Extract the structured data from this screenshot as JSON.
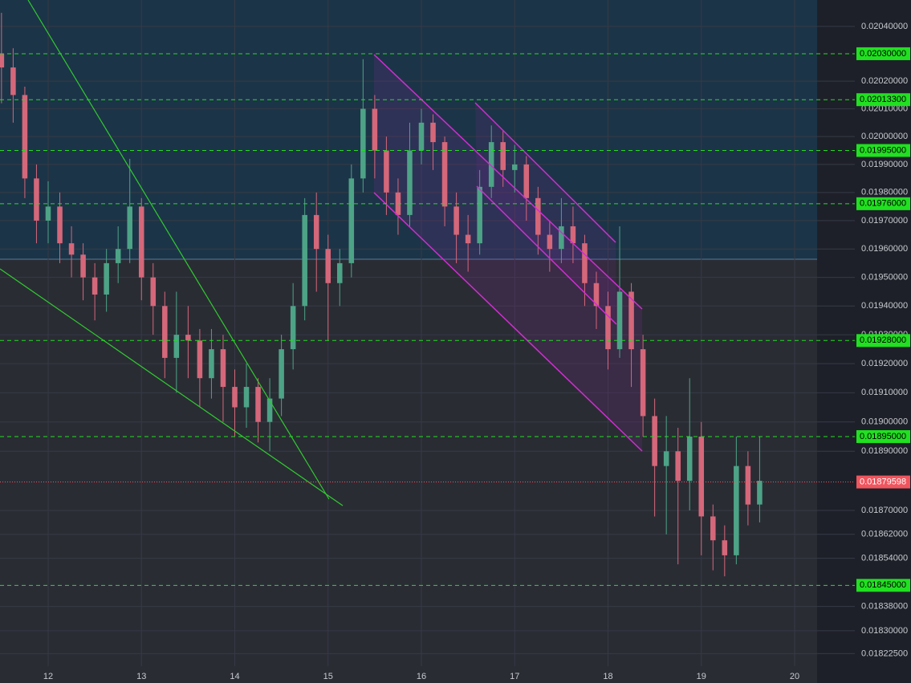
{
  "chart_data": {
    "type": "candlestick",
    "log_scale": true,
    "grid": true,
    "up_color": "#4da386",
    "down_color": "#d5677a",
    "xlim": [
      11.484,
      20.645
    ],
    "xticks": [
      12,
      13,
      14,
      15,
      16,
      17,
      18,
      19,
      20
    ],
    "ylim": [
      0.018184,
      0.020497
    ],
    "yticks": [
      {
        "value": 0.0204,
        "label": "0.02040000"
      },
      {
        "value": 0.0202,
        "label": "0.02020000"
      },
      {
        "value": 0.0201,
        "label": "0.02010000"
      },
      {
        "value": 0.02,
        "label": "0.02000000"
      },
      {
        "value": 0.0199,
        "label": "0.01990000"
      },
      {
        "value": 0.0198,
        "label": "0.01980000"
      },
      {
        "value": 0.0197,
        "label": "0.01970000"
      },
      {
        "value": 0.0196,
        "label": "0.01960000"
      },
      {
        "value": 0.0195,
        "label": "0.01950000"
      },
      {
        "value": 0.0194,
        "label": "0.01940000"
      },
      {
        "value": 0.0193,
        "label": "0.01930000"
      },
      {
        "value": 0.0192,
        "label": "0.01920000"
      },
      {
        "value": 0.0191,
        "label": "0.01910000"
      },
      {
        "value": 0.019,
        "label": "0.01900000"
      },
      {
        "value": 0.0189,
        "label": "0.01890000"
      },
      {
        "value": 0.0187,
        "label": "0.01870000"
      },
      {
        "value": 0.01862,
        "label": "0.01862000"
      },
      {
        "value": 0.01854,
        "label": "0.01854000"
      },
      {
        "value": 0.01838,
        "label": "0.01838000"
      },
      {
        "value": 0.0183,
        "label": "0.01830000"
      },
      {
        "value": 0.018225,
        "label": "0.01822500"
      }
    ],
    "x": [
      11.5,
      11.625,
      11.75,
      11.875,
      12,
      12.125,
      12.25,
      12.375,
      12.5,
      12.625,
      12.75,
      12.875,
      13,
      13.125,
      13.25,
      13.375,
      13.5,
      13.625,
      13.75,
      13.875,
      14,
      14.125,
      14.25,
      14.375,
      14.5,
      14.625,
      14.75,
      14.875,
      15,
      15.125,
      15.25,
      15.375,
      15.5,
      15.625,
      15.75,
      15.875,
      16,
      16.125,
      16.25,
      16.375,
      16.5,
      16.625,
      16.75,
      16.875,
      17,
      17.125,
      17.25,
      17.375,
      17.5,
      17.625,
      17.75,
      17.875,
      18,
      18.125,
      18.25,
      18.375,
      18.5,
      18.625,
      18.75,
      18.875,
      19,
      19.125,
      19.25,
      19.375,
      19.5,
      19.625
    ],
    "open": [
      0.0203,
      0.02025,
      0.02015,
      0.01985,
      0.0197,
      0.01975,
      0.01962,
      0.01958,
      0.0195,
      0.01944,
      0.01955,
      0.0196,
      0.01975,
      0.0195,
      0.0194,
      0.01922,
      0.0193,
      0.01928,
      0.01915,
      0.01925,
      0.01912,
      0.01905,
      0.01912,
      0.019,
      0.01908,
      0.01925,
      0.0194,
      0.01972,
      0.0196,
      0.01948,
      0.01955,
      0.01985,
      0.0201,
      0.01995,
      0.0198,
      0.01972,
      0.01995,
      0.02005,
      0.01998,
      0.01975,
      0.01965,
      0.01962,
      0.01982,
      0.01998,
      0.01988,
      0.0199,
      0.01978,
      0.01965,
      0.0196,
      0.01968,
      0.01962,
      0.01948,
      0.0194,
      0.01925,
      0.01945,
      0.01925,
      0.01902,
      0.01885,
      0.0189,
      0.0188,
      0.01895,
      0.01868,
      0.0186,
      0.01855,
      0.01885,
      0.01872
    ],
    "high": [
      0.02045,
      0.02032,
      0.02018,
      0.0199,
      0.01984,
      0.0198,
      0.01968,
      0.01962,
      0.01955,
      0.0196,
      0.01968,
      0.01992,
      0.01978,
      0.01955,
      0.01945,
      0.01945,
      0.0194,
      0.01932,
      0.01932,
      0.0193,
      0.01918,
      0.0192,
      0.01915,
      0.01915,
      0.0193,
      0.01948,
      0.01978,
      0.0198,
      0.01965,
      0.0196,
      0.0199,
      0.02028,
      0.02015,
      0.02,
      0.01985,
      0.02005,
      0.0201,
      0.02008,
      0.02,
      0.0198,
      0.01972,
      0.01988,
      0.02004,
      0.02002,
      0.01997,
      0.01993,
      0.01982,
      0.0197,
      0.01978,
      0.01975,
      0.01965,
      0.01952,
      0.01945,
      0.01968,
      0.01948,
      0.0193,
      0.01908,
      0.01902,
      0.01898,
      0.01915,
      0.019,
      0.01872,
      0.01865,
      0.01895,
      0.0189,
      0.01895
    ],
    "low": [
      0.02012,
      0.02005,
      0.01978,
      0.01962,
      0.01962,
      0.01955,
      0.0195,
      0.01942,
      0.01935,
      0.01938,
      0.01948,
      0.01955,
      0.01942,
      0.0193,
      0.01915,
      0.0191,
      0.01915,
      0.01905,
      0.01908,
      0.019,
      0.01895,
      0.01898,
      0.01893,
      0.0189,
      0.01902,
      0.01918,
      0.01935,
      0.01945,
      0.01928,
      0.0194,
      0.0195,
      0.0198,
      0.01985,
      0.01972,
      0.01965,
      0.01968,
      0.0199,
      0.01988,
      0.01968,
      0.01955,
      0.01952,
      0.01958,
      0.01978,
      0.01982,
      0.0198,
      0.0197,
      0.01958,
      0.01952,
      0.01955,
      0.01955,
      0.0194,
      0.01932,
      0.01918,
      0.01922,
      0.01912,
      0.01895,
      0.01868,
      0.01862,
      0.01852,
      0.0187,
      0.01855,
      0.0185,
      0.01848,
      0.01852,
      0.01865,
      0.01866
    ],
    "close": [
      0.02025,
      0.02015,
      0.01985,
      0.0197,
      0.01975,
      0.01962,
      0.01958,
      0.0195,
      0.01944,
      0.01955,
      0.0196,
      0.01975,
      0.0195,
      0.0194,
      0.01922,
      0.0193,
      0.01928,
      0.01915,
      0.01925,
      0.01912,
      0.01905,
      0.01912,
      0.019,
      0.01908,
      0.01925,
      0.0194,
      0.01972,
      0.0196,
      0.01948,
      0.01955,
      0.01985,
      0.0201,
      0.01995,
      0.0198,
      0.01972,
      0.01995,
      0.02005,
      0.01998,
      0.01975,
      0.01965,
      0.01962,
      0.01982,
      0.01998,
      0.01988,
      0.0199,
      0.01978,
      0.01965,
      0.0196,
      0.01968,
      0.01962,
      0.01948,
      0.0194,
      0.01925,
      0.01945,
      0.01925,
      0.01902,
      0.01885,
      0.0189,
      0.0188,
      0.01895,
      0.01868,
      0.0186,
      0.01855,
      0.01885,
      0.01872,
      0.0188
    ],
    "levels": [
      {
        "value": 0.0203,
        "label": "0.02030000",
        "color": "#21e021"
      },
      {
        "value": 0.020133,
        "label": "0.02013300",
        "color": "#21e021"
      },
      {
        "value": 0.01995,
        "label": "0.01995000",
        "color": "#21e021"
      },
      {
        "value": 0.01976,
        "label": "0.01976000",
        "color": "#21e021"
      },
      {
        "value": 0.01928,
        "label": "0.01928000",
        "color": "#21e021"
      },
      {
        "value": 0.01895,
        "label": "0.01895000",
        "color": "#21e021"
      },
      {
        "value": 0.01845,
        "label": "0.01845000",
        "color": "#21e021"
      }
    ],
    "last_price": {
      "value": 0.01879598,
      "label": "0.01879598",
      "color": "#f0555e"
    }
  }
}
